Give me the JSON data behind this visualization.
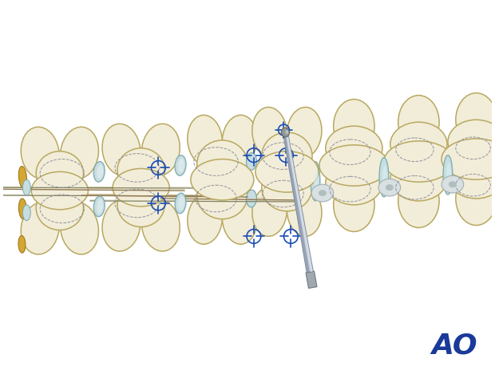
{
  "background_color": "#ffffff",
  "figsize": [
    6.2,
    4.59
  ],
  "dpi": 100,
  "bone_fill": "#f2edd8",
  "bone_fill_light": "#f8f5e8",
  "bone_edge": "#b8a860",
  "bone_edge_dark": "#8a7840",
  "disc_fill": "#c8dde0",
  "disc_edge": "#7aaab0",
  "disc_white_fill": "#ddeaea",
  "spinous_color": "#a09060",
  "yellow_fill": "#d4a830",
  "yellow_edge": "#a07820",
  "cross_color": "#1a4db5",
  "dashed_color": "#9090a0",
  "ao_color": "#1a3a9a",
  "instrument_main": "#b8c0cc",
  "instrument_light": "#dde4ec",
  "instrument_dark": "#7880900",
  "instrument_tip": "#909898"
}
